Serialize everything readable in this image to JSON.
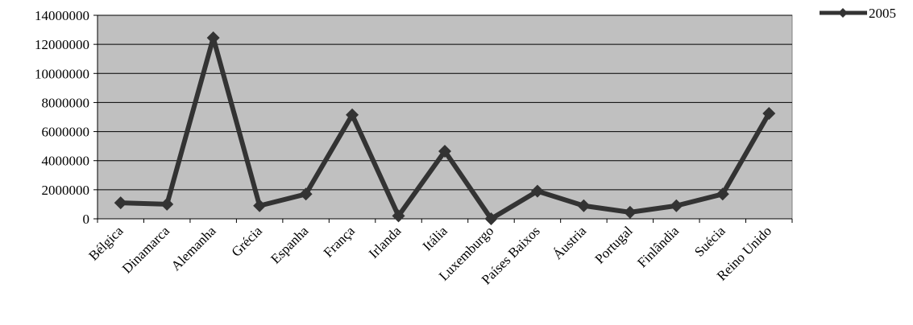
{
  "chart_data": {
    "type": "line",
    "title": "",
    "xlabel": "",
    "ylabel": "",
    "categories": [
      "Bélgica",
      "Dinamarca",
      "Alemanha",
      "Grécia",
      "Espanha",
      "França",
      "Irlanda",
      "Itália",
      "Luxemburgo",
      "Países Baixos",
      "Áustria",
      "Portugal",
      "Finlândia",
      "Suécia",
      "Reino Unido"
    ],
    "series": [
      {
        "name": "2005",
        "values": [
          1100000,
          1000000,
          12450000,
          900000,
          1700000,
          7150000,
          200000,
          4650000,
          0,
          1900000,
          900000,
          450000,
          900000,
          1700000,
          7250000
        ]
      }
    ],
    "ylim": [
      0,
      14000000
    ],
    "yticks": [
      "0",
      "2000000",
      "4000000",
      "6000000",
      "8000000",
      "10000000",
      "12000000",
      "14000000"
    ],
    "grid": true,
    "legend_position": "top-right",
    "colors": {
      "plot_background": "#c0c0c0",
      "series_line": "#333333",
      "gridline": "#000000"
    }
  }
}
